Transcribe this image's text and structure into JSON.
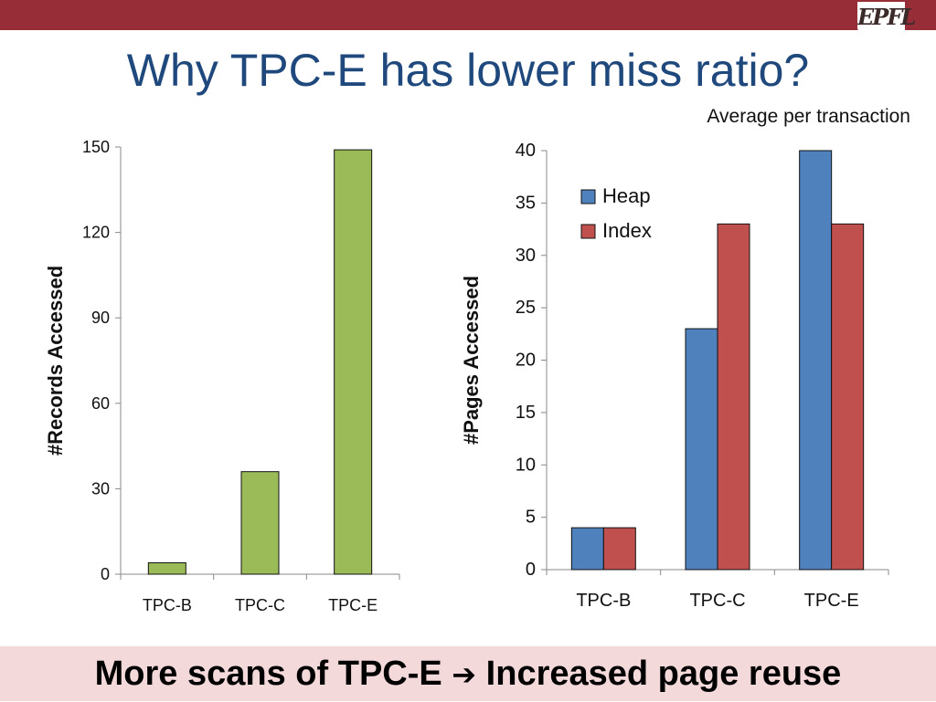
{
  "slide": {
    "title": "Why TPC-E has lower miss ratio?",
    "subtitle": "Average per transaction",
    "logo": "EPFL",
    "footer_left": "More scans of TPC-E",
    "footer_arrow": "➔",
    "footer_right": "Increased page reuse"
  },
  "colors": {
    "topbar": "#962d37",
    "title": "#1f497d",
    "footer_bg": "#f3d9da",
    "records": "#9bbb59",
    "heap": "#4f81bd",
    "index": "#c0504d"
  },
  "chart_data": [
    {
      "type": "bar",
      "categories": [
        "TPC-B",
        "TPC-C",
        "TPC-E"
      ],
      "series": [
        {
          "values": [
            4,
            36,
            149
          ]
        }
      ],
      "ylabel": "#Records Accessed",
      "xlabel": "",
      "ylim": [
        0,
        150
      ],
      "yticks": [
        0,
        30,
        60,
        90,
        120,
        150
      ],
      "grid": false,
      "legend": "none"
    },
    {
      "type": "bar",
      "categories": [
        "TPC-B",
        "TPC-C",
        "TPC-E"
      ],
      "series": [
        {
          "name": "Heap",
          "values": [
            4,
            23,
            40
          ]
        },
        {
          "name": "Index",
          "values": [
            4,
            33,
            33
          ]
        }
      ],
      "ylabel": "#Pages Accessed",
      "xlabel": "",
      "ylim": [
        0,
        40
      ],
      "yticks": [
        0,
        5,
        10,
        15,
        20,
        25,
        30,
        35,
        40
      ],
      "grid": false,
      "legend": "top-left"
    }
  ]
}
